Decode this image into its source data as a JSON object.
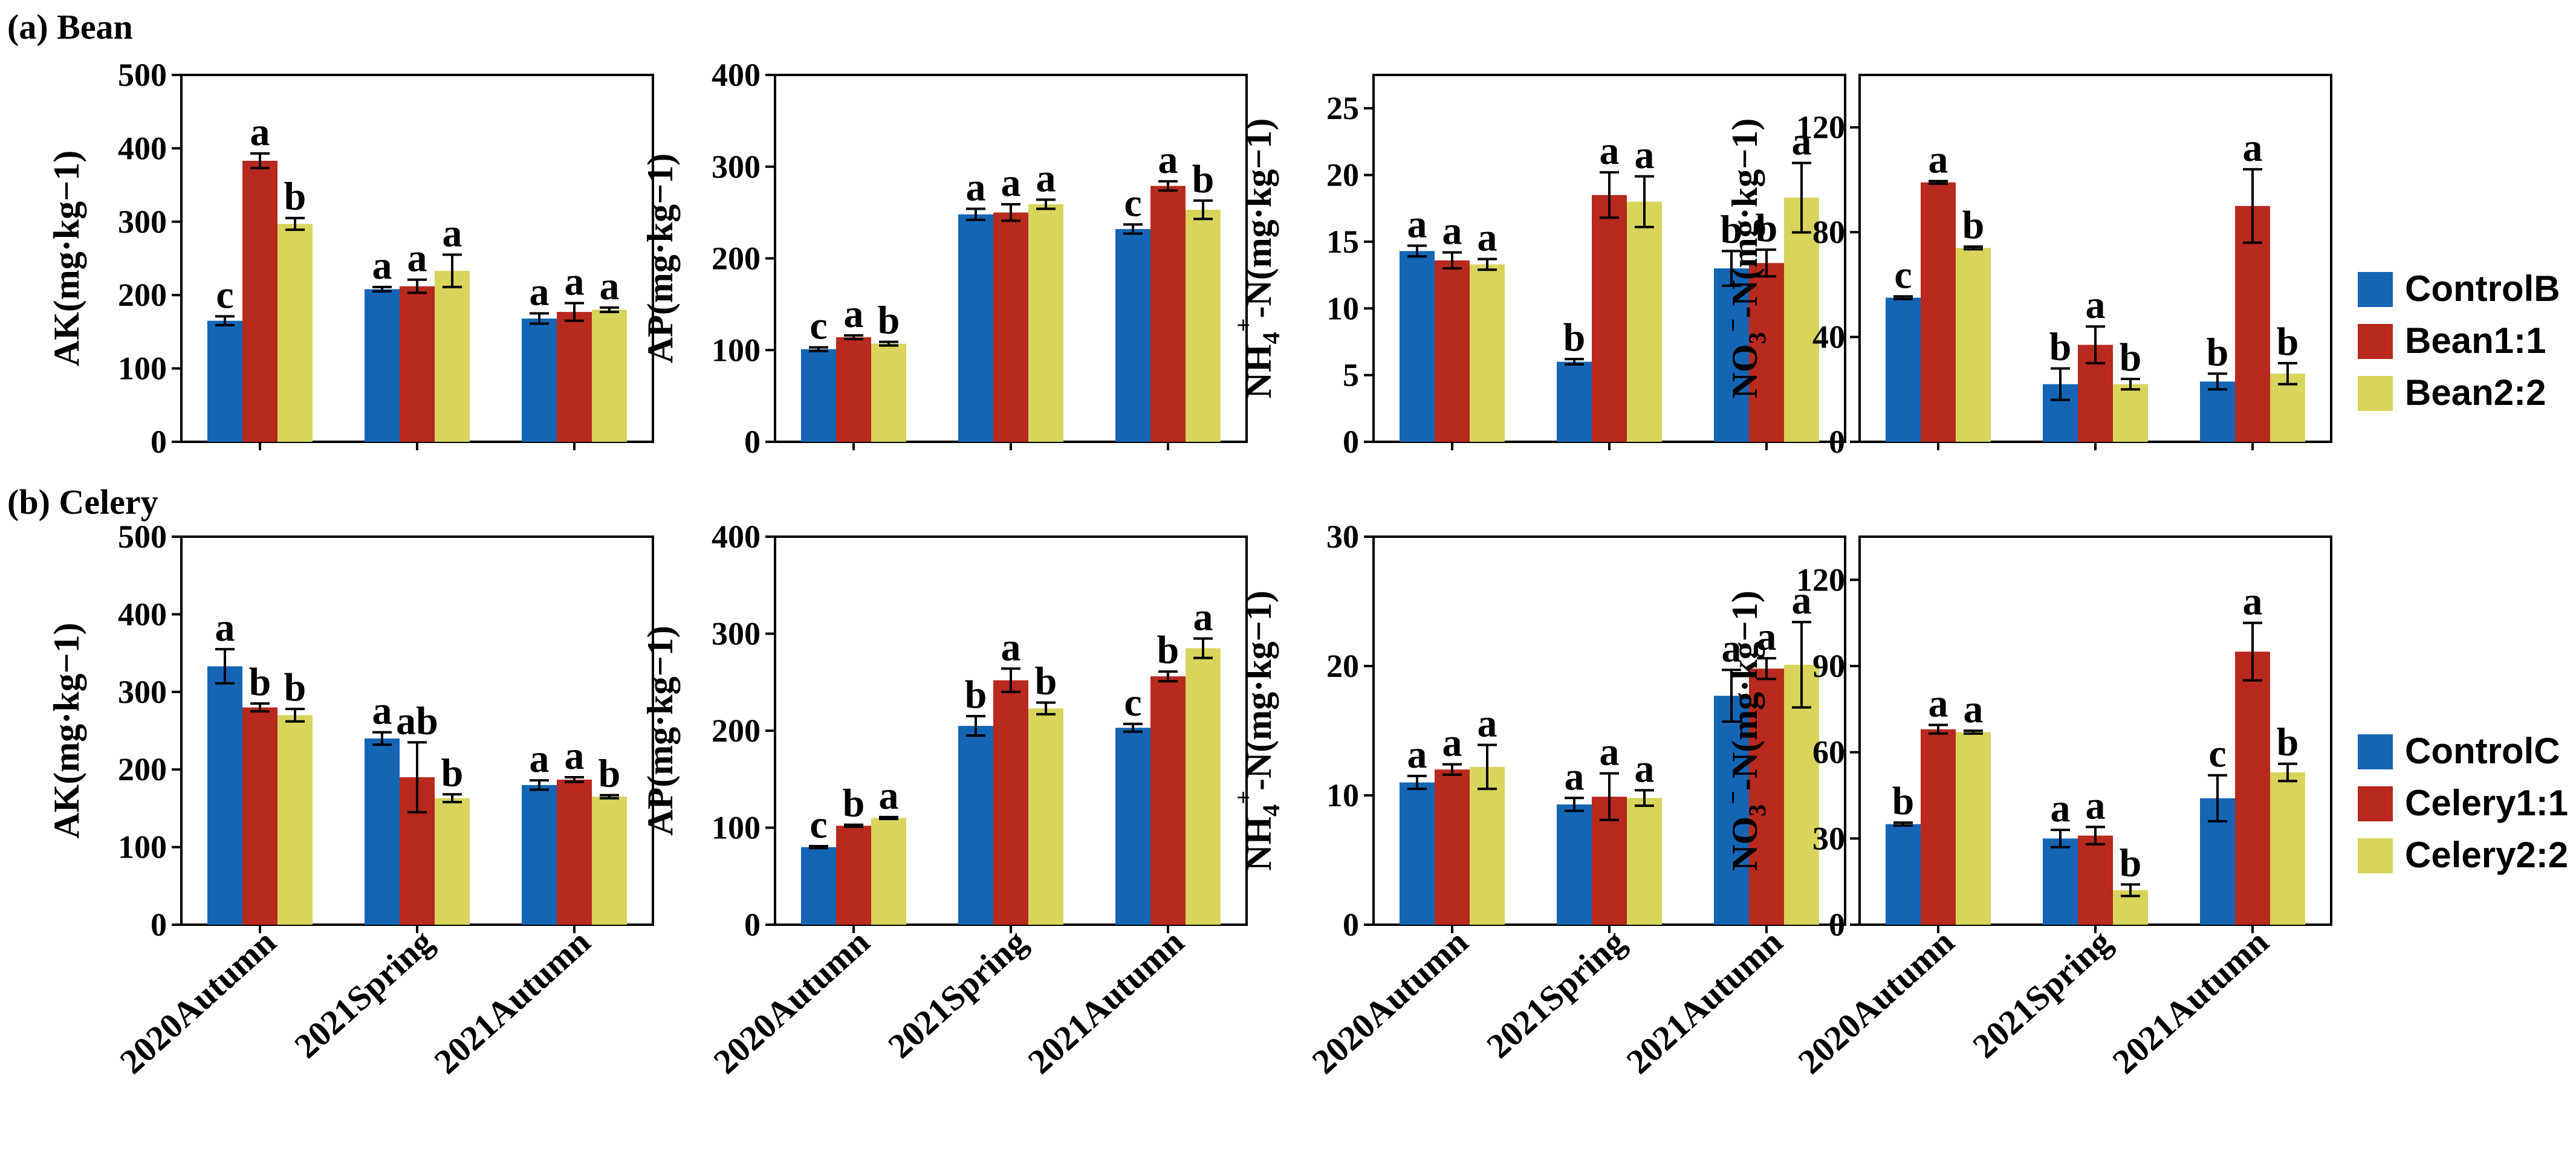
{
  "figure": {
    "panel_labels": {
      "a": "(a)  Bean",
      "b": "(b)  Celery"
    }
  },
  "colors": {
    "s1": "#1565b5",
    "s2": "#b8291e",
    "s3": "#d8d45c"
  },
  "legends": [
    {
      "entries": [
        "ControlB",
        "Bean1:1",
        "Bean2:2"
      ]
    },
    {
      "entries": [
        "ControlC",
        "Celery1:1",
        "Celery2:2"
      ]
    }
  ],
  "chart_data": [
    {
      "type": "bar",
      "row": "a",
      "ylabel_kind": "AK",
      "ylabel": "AK(mg·kg−1)",
      "categories": [
        "2020Autumn",
        "2021Spring",
        "2021Autumn"
      ],
      "ylim": [
        0,
        500
      ],
      "yticks": [
        0,
        100,
        200,
        300,
        400,
        500
      ],
      "series": [
        {
          "name": "ControlB",
          "values": [
            165,
            208,
            168
          ],
          "errors": [
            6,
            3,
            7
          ],
          "letters": [
            "c",
            "a",
            "a"
          ]
        },
        {
          "name": "Bean1:1",
          "values": [
            383,
            212,
            177
          ],
          "errors": [
            10,
            9,
            12
          ],
          "letters": [
            "a",
            "a",
            "a"
          ]
        },
        {
          "name": "Bean2:2",
          "values": [
            297,
            233,
            180
          ],
          "errors": [
            8,
            22,
            3
          ],
          "letters": [
            "b",
            "a",
            "a"
          ]
        }
      ]
    },
    {
      "type": "bar",
      "row": "a",
      "ylabel_kind": "AP",
      "ylabel": "AP(mg·kg−1)",
      "categories": [
        "2020Autumn",
        "2021Spring",
        "2021Autumn"
      ],
      "ylim": [
        0,
        400
      ],
      "yticks": [
        0,
        100,
        200,
        300,
        400
      ],
      "series": [
        {
          "name": "ControlB",
          "values": [
            101,
            248,
            232
          ],
          "errors": [
            2,
            6,
            5
          ],
          "letters": [
            "c",
            "a",
            "c"
          ]
        },
        {
          "name": "Bean1:1",
          "values": [
            114,
            250,
            279
          ],
          "errors": [
            2,
            9,
            5
          ],
          "letters": [
            "a",
            "a",
            "a"
          ]
        },
        {
          "name": "Bean2:2",
          "values": [
            107,
            259,
            253
          ],
          "errors": [
            2,
            5,
            10
          ],
          "letters": [
            "b",
            "a",
            "b"
          ]
        }
      ]
    },
    {
      "type": "bar",
      "row": "a",
      "ylabel_kind": "NH4",
      "ylabel": "NH4+-N(mg·kg−1)",
      "categories": [
        "2020Autumn",
        "2021Spring",
        "2021Autumn"
      ],
      "ylim": [
        0,
        27.5
      ],
      "yticks": [
        0,
        5,
        10,
        15,
        20,
        25
      ],
      "series": [
        {
          "name": "ControlB",
          "values": [
            14.3,
            6.0,
            13.0
          ],
          "errors": [
            0.4,
            0.2,
            1.3
          ],
          "letters": [
            "a",
            "b",
            "b"
          ]
        },
        {
          "name": "Bean1:1",
          "values": [
            13.6,
            18.5,
            13.4
          ],
          "errors": [
            0.6,
            1.7,
            1.0
          ],
          "letters": [
            "a",
            "a",
            "b"
          ]
        },
        {
          "name": "Bean2:2",
          "values": [
            13.3,
            18.0,
            18.3
          ],
          "errors": [
            0.4,
            1.9,
            2.6
          ],
          "letters": [
            "a",
            "a",
            "a"
          ]
        }
      ]
    },
    {
      "type": "bar",
      "row": "a",
      "ylabel_kind": "NO3",
      "ylabel": "NO3−-N(mg·kg−1)",
      "categories": [
        "2020Autumn",
        "2021Spring",
        "2021Autumn"
      ],
      "ylim": [
        0,
        140
      ],
      "yticks": [
        0,
        40,
        80,
        120
      ],
      "series": [
        {
          "name": "ControlB",
          "values": [
            55,
            22,
            23
          ],
          "errors": [
            0.5,
            6,
            3
          ],
          "letters": [
            "c",
            "b",
            "b"
          ]
        },
        {
          "name": "Bean1:1",
          "values": [
            99,
            37,
            90
          ],
          "errors": [
            0.5,
            7,
            14
          ],
          "letters": [
            "a",
            "a",
            "a"
          ]
        },
        {
          "name": "Bean2:2",
          "values": [
            74,
            22,
            26
          ],
          "errors": [
            0.5,
            2,
            4
          ],
          "letters": [
            "b",
            "b",
            "b"
          ]
        }
      ]
    },
    {
      "type": "bar",
      "row": "b",
      "ylabel_kind": "AK",
      "ylabel": "AK(mg·kg−1)",
      "categories": [
        "2020Autumn",
        "2021Spring",
        "2021Autumn"
      ],
      "ylim": [
        0,
        500
      ],
      "yticks": [
        0,
        100,
        200,
        300,
        400,
        500
      ],
      "series": [
        {
          "name": "ControlC",
          "values": [
            333,
            240,
            180
          ],
          "errors": [
            22,
            8,
            6
          ],
          "letters": [
            "a",
            "a",
            "a"
          ]
        },
        {
          "name": "Celery1:1",
          "values": [
            280,
            190,
            187
          ],
          "errors": [
            5,
            45,
            3
          ],
          "letters": [
            "b",
            "ab",
            "a"
          ]
        },
        {
          "name": "Celery2:2",
          "values": [
            270,
            163,
            165
          ],
          "errors": [
            8,
            5,
            2
          ],
          "letters": [
            "b",
            "b",
            "b"
          ]
        }
      ]
    },
    {
      "type": "bar",
      "row": "b",
      "ylabel_kind": "AP",
      "ylabel": "AP(mg·kg−1)",
      "categories": [
        "2020Autumn",
        "2021Spring",
        "2021Autumn"
      ],
      "ylim": [
        0,
        400
      ],
      "yticks": [
        0,
        100,
        200,
        300,
        400
      ],
      "series": [
        {
          "name": "ControlC",
          "values": [
            80,
            205,
            203
          ],
          "errors": [
            1,
            10,
            4
          ],
          "letters": [
            "c",
            "b",
            "c"
          ]
        },
        {
          "name": "Celery1:1",
          "values": [
            102,
            252,
            256
          ],
          "errors": [
            1,
            12,
            5
          ],
          "letters": [
            "b",
            "a",
            "b"
          ]
        },
        {
          "name": "Celery2:2",
          "values": [
            110,
            223,
            285
          ],
          "errors": [
            1,
            6,
            10
          ],
          "letters": [
            "a",
            "b",
            "a"
          ]
        }
      ]
    },
    {
      "type": "bar",
      "row": "b",
      "ylabel_kind": "NH4",
      "ylabel": "NH4+-N(mg·kg−1)",
      "categories": [
        "2020Autumn",
        "2021Spring",
        "2021Autumn"
      ],
      "ylim": [
        0,
        30
      ],
      "yticks": [
        0,
        10,
        20,
        30
      ],
      "series": [
        {
          "name": "ControlC",
          "values": [
            11.0,
            9.3,
            17.7
          ],
          "errors": [
            0.5,
            0.5,
            2.0
          ],
          "letters": [
            "a",
            "a",
            "a"
          ]
        },
        {
          "name": "Celery1:1",
          "values": [
            12.0,
            9.9,
            19.8
          ],
          "errors": [
            0.4,
            1.8,
            0.8
          ],
          "letters": [
            "a",
            "a",
            "a"
          ]
        },
        {
          "name": "Celery2:2",
          "values": [
            12.2,
            9.8,
            20.1
          ],
          "errors": [
            1.7,
            0.6,
            3.3
          ],
          "letters": [
            "a",
            "a",
            "a"
          ]
        }
      ]
    },
    {
      "type": "bar",
      "row": "b",
      "ylabel_kind": "NO3",
      "ylabel": "NO3−-N(mg·kg−1)",
      "categories": [
        "2020Autumn",
        "2021Spring",
        "2021Autumn"
      ],
      "ylim": [
        0,
        135
      ],
      "yticks": [
        0,
        30,
        60,
        90,
        120
      ],
      "series": [
        {
          "name": "ControlC",
          "values": [
            35,
            30,
            44
          ],
          "errors": [
            0.5,
            3,
            8
          ],
          "letters": [
            "b",
            "a",
            "c"
          ]
        },
        {
          "name": "Celery1:1",
          "values": [
            68,
            31,
            95
          ],
          "errors": [
            1.5,
            3,
            10
          ],
          "letters": [
            "a",
            "a",
            "a"
          ]
        },
        {
          "name": "Celery2:2",
          "values": [
            67,
            12,
            53
          ],
          "errors": [
            0.5,
            2,
            3
          ],
          "letters": [
            "a",
            "b",
            "b"
          ]
        }
      ]
    }
  ]
}
